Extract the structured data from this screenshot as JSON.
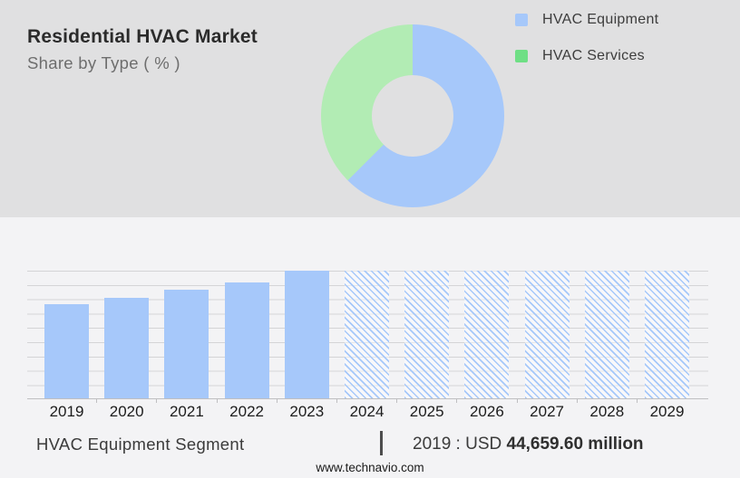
{
  "header": {
    "title": "Residential HVAC Market",
    "subtitle": "Share by Type ( % )"
  },
  "colors": {
    "bar_blue": "#a6c8fa",
    "donut_green": "#b2ecb4",
    "legend_green": "#6fdf85",
    "top_band_bg": "#e0e0e1",
    "bottom_band_bg": "#f3f3f5",
    "gridline": "#d4d4d6",
    "axis": "#bfbfc1"
  },
  "chart_data": [
    {
      "type": "pie",
      "subtype": "donut",
      "title": "Residential HVAC Market",
      "subtitle": "Share by Type ( % )",
      "labels": [
        "HVAC Equipment",
        "HVAC Services"
      ],
      "values": [
        62.5,
        37.5
      ],
      "unit": "%",
      "colors": [
        "#a6c8fa",
        "#b2ecb4"
      ],
      "start_angle_deg": 0,
      "legend_position": "right",
      "legend": [
        {
          "label": "HVAC Equipment",
          "swatch_color": "#a6c8fa"
        },
        {
          "label": "HVAC Services",
          "swatch_color": "#6fdf85"
        }
      ],
      "values_note": "no numeric labels shown; slice shares estimated from arc angles"
    },
    {
      "type": "bar",
      "categories": [
        "2019",
        "2020",
        "2021",
        "2022",
        "2023",
        "2024",
        "2025",
        "2026",
        "2027",
        "2028",
        "2029"
      ],
      "series": [
        {
          "name": "HVAC Equipment Segment",
          "unit": "USD million",
          "values": [
            44659.6,
            47850,
            51250,
            55080,
            60400,
            null,
            null,
            null,
            null,
            null,
            null
          ]
        }
      ],
      "bar_color": "#a6c8fa",
      "bar_style": [
        "solid",
        "solid",
        "solid",
        "solid",
        "solid",
        "hatched",
        "hatched",
        "hatched",
        "hatched",
        "hatched",
        "hatched"
      ],
      "bar_height_pct": [
        74,
        79,
        85,
        91,
        100,
        100,
        100,
        100,
        100,
        100,
        100
      ],
      "grid": true,
      "y_axis_labels_shown": false,
      "known_value_label": "2019 : USD 44,659.60 million",
      "values_note": "2020-2023 estimated from bar heights; 2024-2029 are full-height hatched forecast bars with no values shown"
    }
  ],
  "footer": {
    "segment_label": "HVAC Equipment Segment",
    "separator": "|",
    "value_prefix": "2019 : USD ",
    "value_bold": "44,659.60 million",
    "website": "www.technavio.com"
  }
}
